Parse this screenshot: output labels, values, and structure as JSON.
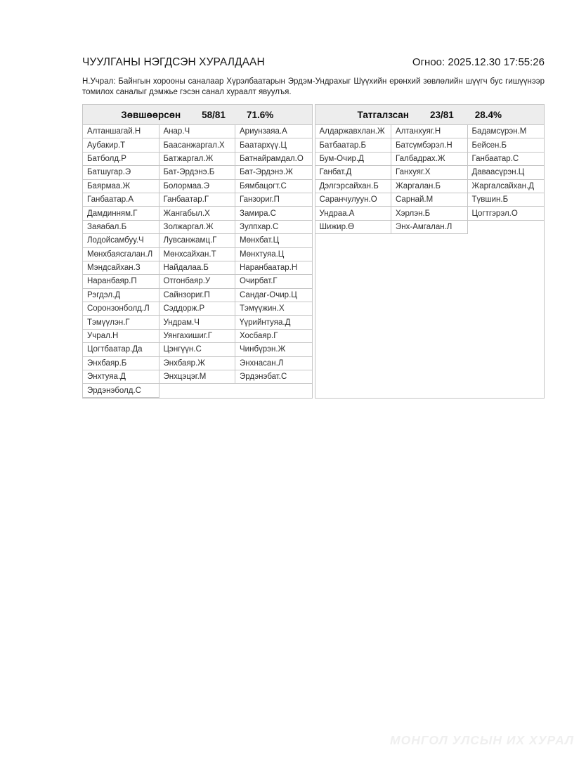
{
  "colors": {
    "border": "#c5c5c5",
    "header_bg": "#ededed",
    "watermark": "#efefef"
  },
  "header": {
    "title": "ЧУУЛГАНЫ НЭГДСЭН ХУРАЛДААН",
    "date": "Огноо: 2025.12.30 17:55:26"
  },
  "description": "Н.Учрал: Байнгын хорооны саналаар Хүрэлбаатарын Эрдэм-Ундрахыг Шүүхийн ерөнхий зөвлөлийн шүүгч бус гишүүнээр томилох саналыг дэмжье гэсэн санал хураалт явуулъя.",
  "panels": [
    {
      "id": "approved",
      "title": "Зөвшөөрсөн",
      "count": "58/81",
      "percent": "71.6%",
      "names": [
        "Алтаншагай.Н",
        "Анар.Ч",
        "Ариунзаяа.А",
        "Аубакир.Т",
        "Баасанжаргал.Х",
        "Баатархүү.Ц",
        "Батболд.Р",
        "Батжаргал.Ж",
        "Батнайрамдал.О",
        "Батшугар.Э",
        "Бат-Эрдэнэ.Б",
        "Бат-Эрдэнэ.Ж",
        "Баярмаа.Ж",
        "Болормаа.Э",
        "Бямбацогт.С",
        "Ганбаатар.А",
        "Ганбаатар.Г",
        "Ганзориг.П",
        "Дамдинням.Г",
        "Жангабыл.Х",
        "Замира.С",
        "Заяабал.Б",
        "Золжаргал.Ж",
        "Зулпхар.С",
        "Лодойсамбуу.Ч",
        "Лувсанжамц.Г",
        "Мөнхбат.Ц",
        "Мөнхбаясгалан.Л",
        "Мөнхсайхан.Т",
        "Мөнхтуяа.Ц",
        "Мэндсайхан.З",
        "Найдалаа.Б",
        "Наранбаатар.Н",
        "Наранбаяр.П",
        "Отгонбаяр.У",
        "Очирбат.Г",
        "Рэгдэл.Д",
        "Сайнзориг.П",
        "Сандаг-Очир.Ц",
        "Соронзонболд.Л",
        "Сэддорж.Р",
        "Тэмүүжин.Х",
        "Тэмүүлэн.Г",
        "Ундрам.Ч",
        "Үүрийнтуяа.Д",
        "Учрал.Н",
        "Уянгахишиг.Г",
        "Хосбаяр.Г",
        "Цогтбаатар.Да",
        "Цэнгүүн.С",
        "Чинбүрэн.Ж",
        "Энхбаяр.Б",
        "Энхбаяр.Ж",
        "Энхнасан.Л",
        "Энхтуяа.Д",
        "Энхцэцэг.М",
        "Эрдэнэбат.С",
        "Эрдэнэболд.С"
      ]
    },
    {
      "id": "rejected",
      "title": "Татгалзсан",
      "count": "23/81",
      "percent": "28.4%",
      "names": [
        "Алдаржавхлан.Ж",
        "Алтанхуяг.Н",
        "Бадамсүрэн.М",
        "Батбаатар.Б",
        "Батсүмбэрэл.Н",
        "Бейсен.Б",
        "Бум-Очир.Д",
        "Галбадрах.Ж",
        "Ганбаатар.С",
        "Ганбат.Д",
        "Ганхуяг.Х",
        "Даваасүрэн.Ц",
        "Дэлгэрсайхан.Б",
        "Жаргалан.Б",
        "Жаргалсайхан.Д",
        "Саранчулуун.О",
        "Сарнай.М",
        "Түвшин.Б",
        "Ундраа.А",
        "Хэрлэн.Б",
        "Цогтгэрэл.О",
        "Шижир.Ө",
        "Энх-Амгалан.Л"
      ]
    }
  ],
  "watermark": "МОНГОЛ УЛСЫН ИХ ХУРАЛ"
}
